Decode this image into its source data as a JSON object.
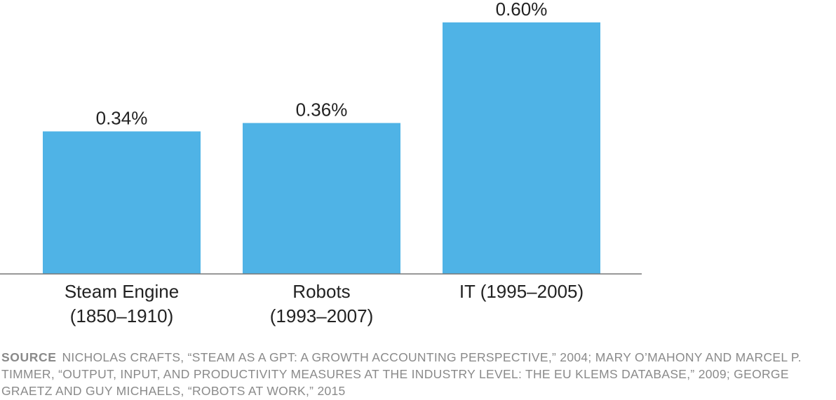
{
  "chart_data": {
    "type": "bar",
    "categories": [
      [
        "Steam Engine",
        "(1850–1910)"
      ],
      [
        "Robots",
        "(1993–2007)"
      ],
      [
        "IT (1995–2005)"
      ]
    ],
    "values": [
      0.34,
      0.36,
      0.6
    ],
    "value_labels": [
      "0.34%",
      "0.36%",
      "0.60%"
    ],
    "ylim": [
      0,
      0.61
    ],
    "bar_color": "#4fb3e6",
    "axis_color": "#777777",
    "grid": false,
    "title": "",
    "xlabel": "",
    "ylabel": ""
  },
  "source": {
    "lead": "SOURCE",
    "text": "NICHOLAS CRAFTS, “STEAM AS A GPT: A GROWTH ACCOUNTING PERSPECTIVE,” 2004; MARY O’MAHONY AND MARCEL P. TIMMER, “OUTPUT, INPUT, AND PRODUCTIVITY MEASURES AT THE INDUSTRY LEVEL: THE EU KLEMS DATABASE,” 2009; GEORGE GRAETZ AND GUY MICHAELS, “ROBOTS AT WORK,” 2015"
  }
}
